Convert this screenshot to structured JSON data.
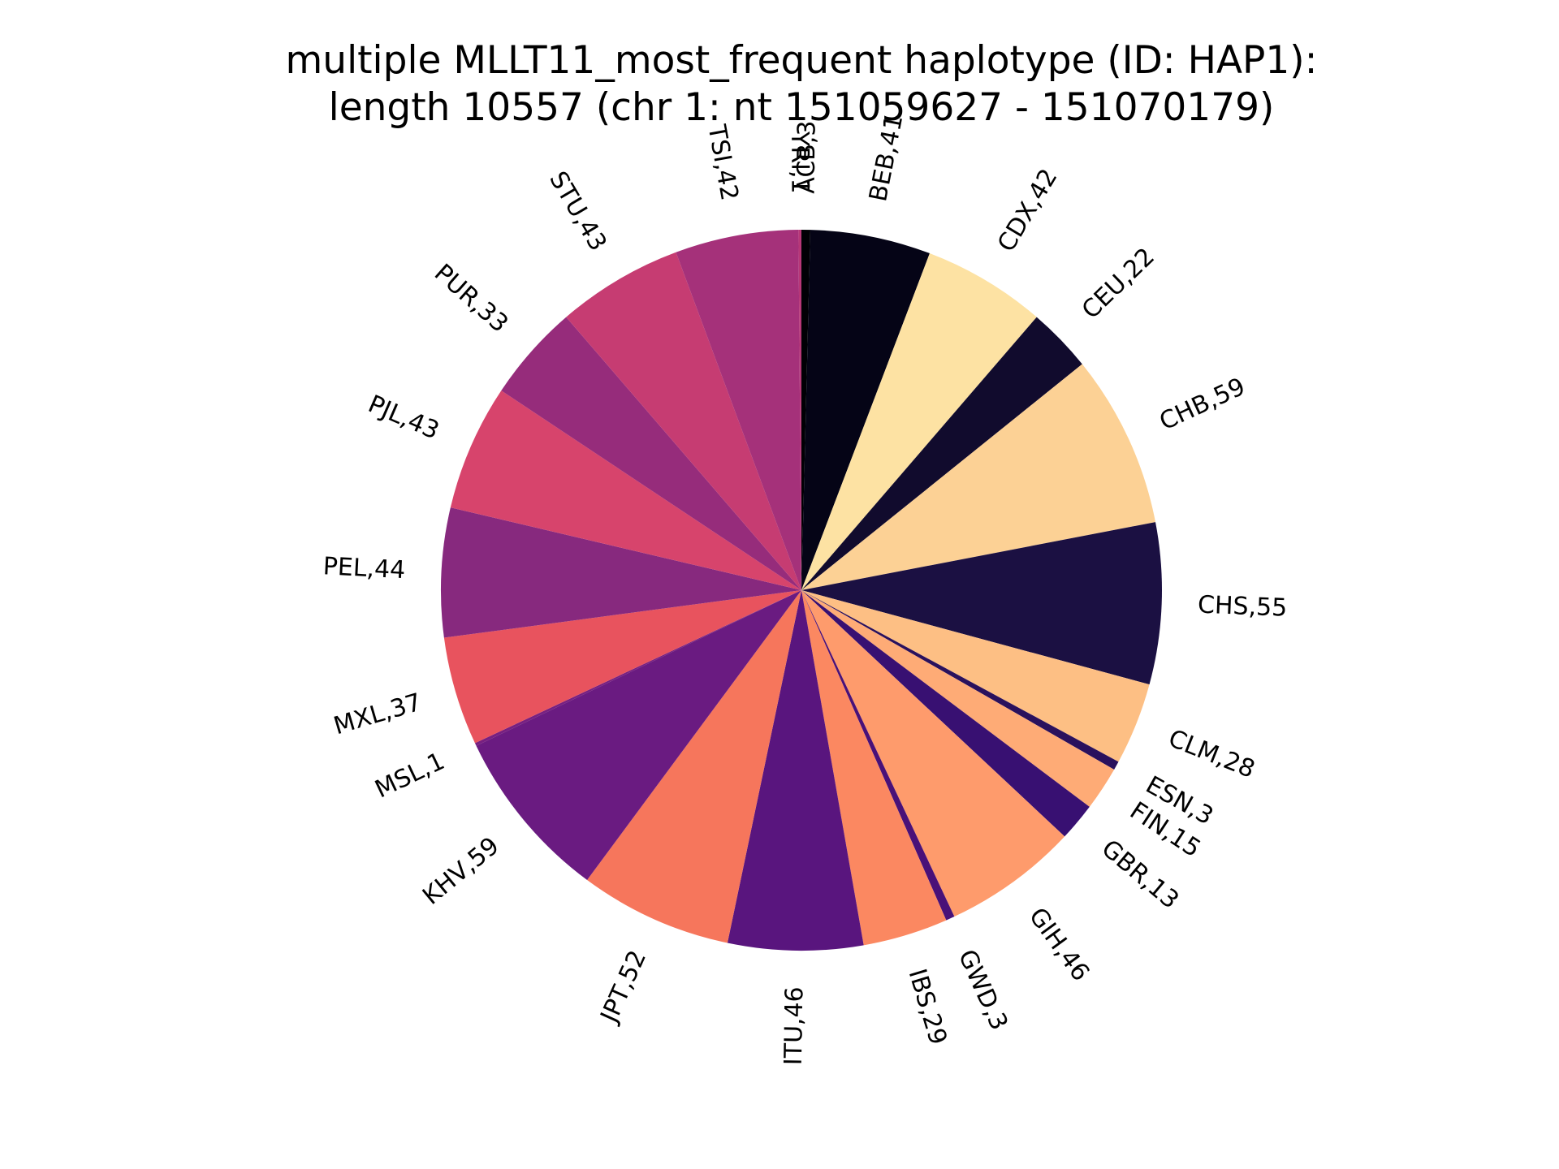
{
  "chart_data": {
    "type": "pie",
    "title": "multiple MLLT11_most_frequent haplotype (ID: HAP1):",
    "subtitle": "length 10557 (chr 1: nt 151059627 - 151070179)",
    "start_angle_deg": 90,
    "direction": "clockwise",
    "slices": [
      {
        "label": "ACB,3",
        "name": "ACB",
        "value": 3,
        "color": "#010005"
      },
      {
        "label": "BEB,41",
        "name": "BEB",
        "value": 41,
        "color": "#050416"
      },
      {
        "label": "CDX,42",
        "name": "CDX",
        "value": 42,
        "color": "#fde2a3"
      },
      {
        "label": "CEU,22",
        "name": "CEU",
        "value": 22,
        "color": "#110b2d"
      },
      {
        "label": "CHB,59",
        "name": "CHB",
        "value": 59,
        "color": "#fcd195"
      },
      {
        "label": "CHS,55",
        "name": "CHS",
        "value": 55,
        "color": "#1b1042"
      },
      {
        "label": "CLM,28",
        "name": "CLM",
        "value": 28,
        "color": "#fdbf84"
      },
      {
        "label": "ESN,3",
        "name": "ESN",
        "value": 3,
        "color": "#2a115d"
      },
      {
        "label": "FIN,15",
        "name": "FIN",
        "value": 15,
        "color": "#feab76"
      },
      {
        "label": "GBR,13",
        "name": "GBR",
        "value": 13,
        "color": "#381072"
      },
      {
        "label": "GIH,46",
        "name": "GIH",
        "value": 46,
        "color": "#fe9b6c"
      },
      {
        "label": "GWD,3",
        "name": "GWD",
        "value": 3,
        "color": "#491178"
      },
      {
        "label": "IBS,29",
        "name": "IBS",
        "value": 29,
        "color": "#fb8861"
      },
      {
        "label": "ITU,46",
        "name": "ITU",
        "value": 46,
        "color": "#59157e"
      },
      {
        "label": "JPT,52",
        "name": "JPT",
        "value": 52,
        "color": "#f6765c"
      },
      {
        "label": "KHV,59",
        "name": "KHV",
        "value": 59,
        "color": "#6a1b81"
      },
      {
        "label": "MSL,1",
        "name": "MSL",
        "value": 1,
        "color": "#772081"
      },
      {
        "label": "MXL,37",
        "name": "MXL",
        "value": 37,
        "color": "#e8535e"
      },
      {
        "label": "PEL,44",
        "name": "PEL",
        "value": 44,
        "color": "#87297e"
      },
      {
        "label": "PJL,43",
        "name": "PJL",
        "value": 43,
        "color": "#d7446c"
      },
      {
        "label": "PUR,33",
        "name": "PUR",
        "value": 33,
        "color": "#962c7b"
      },
      {
        "label": "STU,43",
        "name": "STU",
        "value": 43,
        "color": "#c63c72"
      },
      {
        "label": "TSI,42",
        "name": "TSI",
        "value": 42,
        "color": "#a5317a"
      },
      {
        "label": "YRI,1",
        "name": "YRI",
        "value": 1,
        "color": "#b73777"
      }
    ]
  }
}
